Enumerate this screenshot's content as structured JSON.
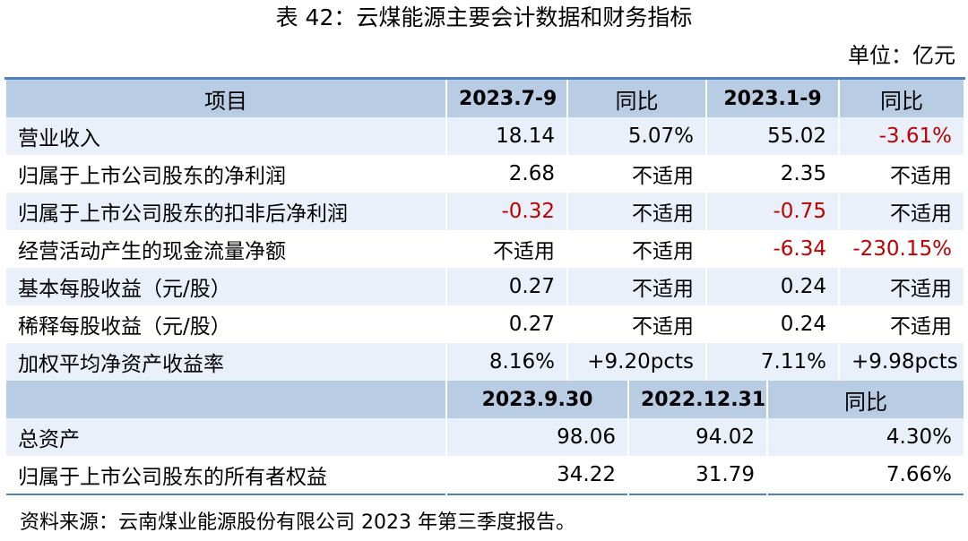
{
  "header": {
    "title": "表 42：云煤能源主要会计数据和财务指标",
    "unit": "单位：亿元"
  },
  "table": {
    "header1": [
      "项目",
      "2023.7-9",
      "同比",
      "2023.1-9",
      "同比"
    ],
    "rows1": [
      [
        "营业收入",
        "18.14",
        "5.07%",
        "55.02",
        "-3.61%"
      ],
      [
        "归属于上市公司股东的净利润",
        "2.68",
        "不适用",
        "2.35",
        "不适用"
      ],
      [
        "归属于上市公司股东的扣非后净利润",
        "-0.32",
        "不适用",
        "-0.75",
        "不适用"
      ],
      [
        "经营活动产生的现金流量净额",
        "不适用",
        "不适用",
        "-6.34",
        "-230.15%"
      ],
      [
        "基本每股收益（元/股）",
        "0.27",
        "不适用",
        "0.24",
        "不适用"
      ],
      [
        "稀释每股收益（元/股）",
        "0.27",
        "不适用",
        "0.24",
        "不适用"
      ],
      [
        "加权平均净资产收益率",
        "8.16%",
        "+9.20pcts",
        "7.11%",
        "+9.98pcts"
      ]
    ],
    "header2": [
      "2023.9.30",
      "2022.12.31",
      "同比"
    ],
    "rows2": [
      [
        "总资产",
        "98.06",
        "94.02",
        "4.30%"
      ],
      [
        "归属于上市公司股东的所有者权益",
        "34.22",
        "31.79",
        "7.66%"
      ]
    ]
  },
  "footer": {
    "source": "资料来源：云南煤业能源股份有限公司 2023 年第三季度报告。"
  }
}
